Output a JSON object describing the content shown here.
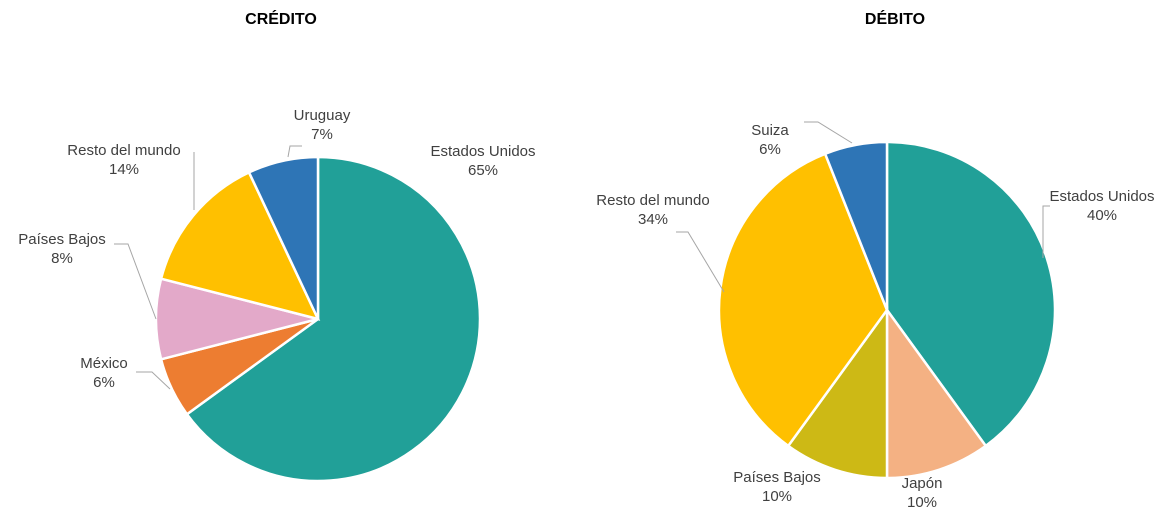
{
  "chart_data": [
    {
      "type": "pie",
      "title": "CRÉDITO",
      "categories": [
        "Estados Unidos",
        "México",
        "Países Bajos",
        "Resto del mundo",
        "Uruguay"
      ],
      "values": [
        65,
        6,
        8,
        14,
        7
      ],
      "value_labels": [
        "65%",
        "6%",
        "8%",
        "14%",
        "7%"
      ],
      "colors": [
        "#21a098",
        "#ed7d31",
        "#e3a9c9",
        "#ffc000",
        "#2e75b6"
      ]
    },
    {
      "type": "pie",
      "title": "DÉBITO",
      "categories": [
        "Estados Unidos",
        "Japón",
        "Países Bajos",
        "Resto del mundo",
        "Suiza"
      ],
      "values": [
        40,
        10,
        10,
        34,
        6
      ],
      "value_labels": [
        "40%",
        "10%",
        "10%",
        "34%",
        "6%"
      ],
      "colors": [
        "#21a098",
        "#f4b183",
        "#cdb915",
        "#ffc000",
        "#2e75b6"
      ]
    }
  ]
}
